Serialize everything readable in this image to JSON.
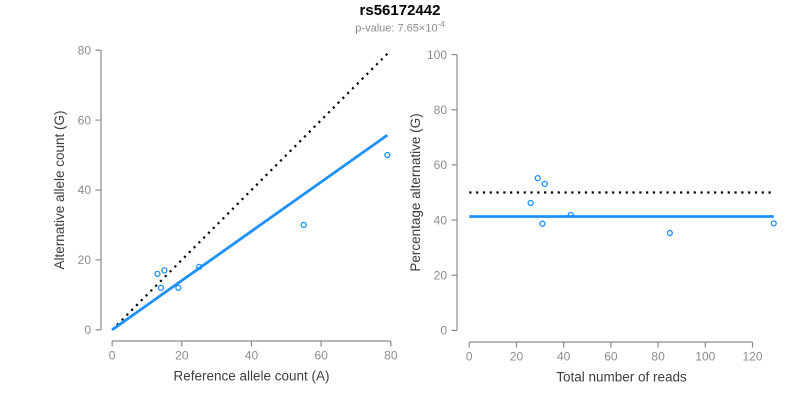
{
  "header": {
    "title": "rs56172442",
    "subtitle_text": "p-value: 7.65×10",
    "subtitle_exponent": "-4"
  },
  "colors": {
    "accent_blue": "#1E90FF",
    "dotted_black": "#000000",
    "axis_gray": "#8C8C8C",
    "label_dark": "#3D3D3D",
    "subtitle_gray": "#8C8C8C"
  },
  "chart_data": [
    {
      "id": "allele-counts",
      "type": "scatter",
      "title": "",
      "xlabel": "Reference allele count (A)",
      "ylabel": "Alternative allele count (G)",
      "xticks": [
        0,
        20,
        40,
        60,
        80
      ],
      "yticks": [
        0,
        20,
        40,
        60,
        80
      ],
      "xlim": [
        -3.2,
        83.2
      ],
      "ylim": [
        -3.2,
        83.2
      ],
      "grid": false,
      "legend": "none",
      "points": [
        [
          13,
          16
        ],
        [
          15,
          17
        ],
        [
          14,
          12
        ],
        [
          19,
          12
        ],
        [
          25,
          18
        ],
        [
          55,
          30
        ],
        [
          79,
          50
        ]
      ],
      "lines": [
        {
          "name": "identity-line",
          "style": "dotted",
          "color": "#000000",
          "x1": 0,
          "y1": 0,
          "x2": 79,
          "y2": 79
        },
        {
          "name": "fit-line",
          "style": "solid",
          "color": "#1E90FF",
          "x1": 0,
          "y1": 0,
          "x2": 79,
          "y2": 55.7
        }
      ]
    },
    {
      "id": "percentage-vs-reads",
      "type": "scatter",
      "title": "",
      "xlabel": "Total number of reads",
      "ylabel": "Percentage alternative (G)",
      "xticks": [
        0,
        20,
        40,
        60,
        80,
        100,
        120
      ],
      "yticks": [
        0,
        20,
        40,
        60,
        80,
        100
      ],
      "xlim": [
        -5.2,
        134.2
      ],
      "ylim": [
        -4.2,
        104.2
      ],
      "grid": false,
      "legend": "none",
      "points": [
        [
          29,
          55.2
        ],
        [
          32,
          53.1
        ],
        [
          26,
          46.2
        ],
        [
          31,
          38.7
        ],
        [
          43,
          41.9
        ],
        [
          85,
          35.3
        ],
        [
          129,
          38.8
        ]
      ],
      "lines": [
        {
          "name": "expected-50pct-line",
          "style": "dotted",
          "color": "#000000",
          "x1": 0,
          "y1": 50,
          "x2": 129,
          "y2": 50
        },
        {
          "name": "observed-mean-line",
          "style": "solid",
          "color": "#1E90FF",
          "x1": 0,
          "y1": 41.3,
          "x2": 129,
          "y2": 41.3
        }
      ]
    }
  ]
}
